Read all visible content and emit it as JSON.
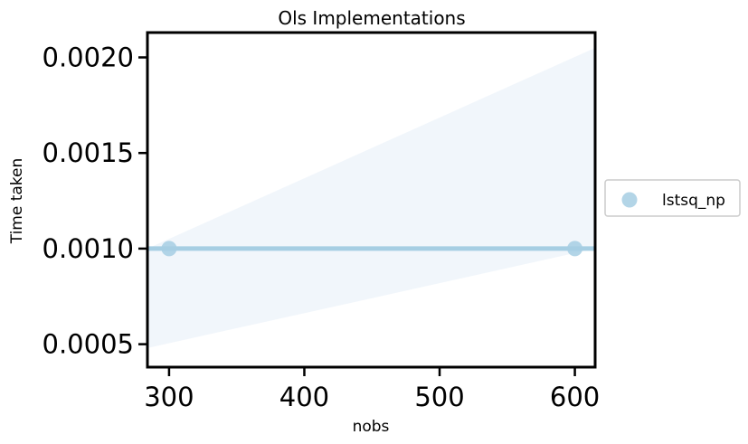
{
  "chart_data": {
    "type": "scatter",
    "title": "Ols Implementations",
    "xlabel": "nobs",
    "ylabel": "Time taken",
    "xlim": [
      284,
      615
    ],
    "ylim": [
      0.00038,
      0.00213
    ],
    "xticks": [
      300,
      400,
      500,
      600
    ],
    "xtick_labels": [
      "300",
      "400",
      "500",
      "600"
    ],
    "yticks": [
      0.0005,
      0.001,
      0.0015,
      0.002
    ],
    "ytick_labels": [
      "0.0005",
      "0.0010",
      "0.0015",
      "0.0020"
    ],
    "grid": false,
    "legend": {
      "placement": "right-outside",
      "entries": [
        "lstsq_np"
      ]
    },
    "series": [
      {
        "name": "lstsq_np",
        "color": "#a6cee3",
        "x": [
          300,
          600
        ],
        "y": [
          0.001,
          0.001
        ],
        "regression_line": {
          "x": [
            284,
            615
          ],
          "y": [
            0.001,
            0.001
          ]
        },
        "confidence_band": {
          "x": [
            284,
            615
          ],
          "lower": [
            0.00048,
            0.001
          ],
          "upper": [
            0.001,
            0.00205
          ],
          "color": "#dce9f5"
        }
      }
    ]
  }
}
